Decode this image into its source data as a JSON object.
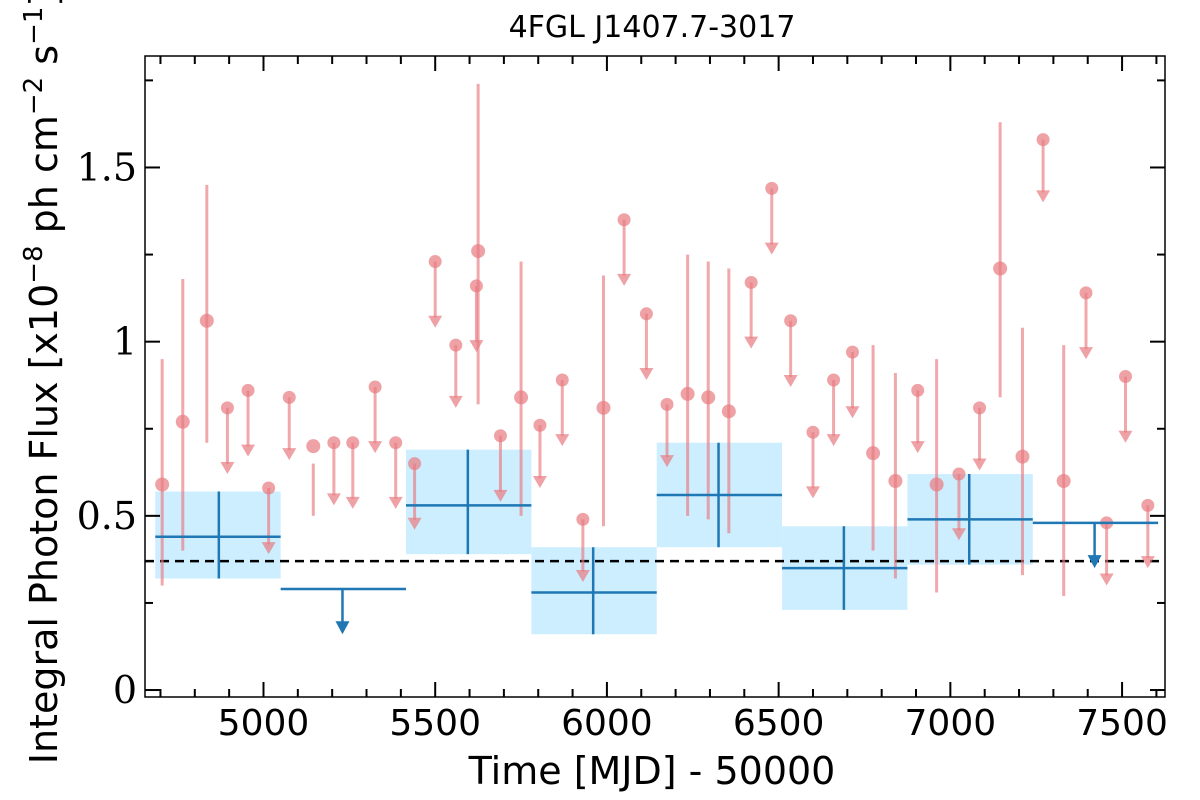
{
  "chart_data": {
    "type": "scatter",
    "title": "4FGL J1407.7-3017",
    "xlabel": "Time [MJD] - 50000",
    "ylabel_parts": [
      "Integral Photon Flux [x10",
      "−8",
      " ph cm",
      "−2",
      " s",
      "−1",
      "]"
    ],
    "xlim": [
      4655,
      7625
    ],
    "ylim": [
      -0.02,
      1.82
    ],
    "xticks": [
      5000,
      5500,
      6000,
      6500,
      7000,
      7500
    ],
    "xtick_labels": [
      "5000",
      "5500",
      "6000",
      "6500",
      "7000",
      "7500"
    ],
    "yticks": [
      0,
      0.5,
      1,
      1.5
    ],
    "ytick_labels": [
      "0",
      "0.5",
      "1",
      "1.5"
    ],
    "ref_level": 0.37,
    "colors": {
      "fine": "#e87a80",
      "coarse": "#1f77b4",
      "band": "#cdeeff",
      "ref": "#000000"
    },
    "series": [
      {
        "points": [
          {
            "x": 4705,
            "y": 0.59,
            "lo": 0.3,
            "hi": 0.95
          },
          {
            "x": 4765,
            "y": 0.77,
            "lo": 0.4,
            "hi": 1.18
          },
          {
            "x": 4835,
            "y": 1.06,
            "lo": 0.71,
            "hi": 1.45
          },
          {
            "x": 5145,
            "y": 0.7,
            "lo": 0.5,
            "hi": 0.65
          },
          {
            "x": 5625,
            "y": 1.26,
            "lo": 0.82,
            "hi": 1.74
          },
          {
            "x": 5750,
            "y": 0.84,
            "lo": 0.5,
            "hi": 1.23
          },
          {
            "x": 5990,
            "y": 0.81,
            "lo": 0.47,
            "hi": 1.19
          },
          {
            "x": 6235,
            "y": 0.85,
            "lo": 0.5,
            "hi": 1.25
          },
          {
            "x": 6295,
            "y": 0.84,
            "lo": 0.49,
            "hi": 1.23
          },
          {
            "x": 6355,
            "y": 0.8,
            "lo": 0.45,
            "hi": 1.21
          },
          {
            "x": 6775,
            "y": 0.68,
            "lo": 0.4,
            "hi": 0.99
          },
          {
            "x": 6840,
            "y": 0.6,
            "lo": 0.32,
            "hi": 0.91
          },
          {
            "x": 6960,
            "y": 0.59,
            "lo": 0.28,
            "hi": 0.95
          },
          {
            "x": 7145,
            "y": 1.21,
            "lo": 0.84,
            "hi": 1.63
          },
          {
            "x": 7210,
            "y": 0.67,
            "lo": 0.33,
            "hi": 1.04
          },
          {
            "x": 7330,
            "y": 0.6,
            "lo": 0.27,
            "hi": 0.99
          }
        ]
      },
      {
        "upper_limits": [
          {
            "x": 4895,
            "y": 0.81,
            "to": 0.62
          },
          {
            "x": 4955,
            "y": 0.86,
            "to": 0.67
          },
          {
            "x": 5015,
            "y": 0.58,
            "to": 0.39
          },
          {
            "x": 5075,
            "y": 0.84,
            "to": 0.66
          },
          {
            "x": 5205,
            "y": 0.71,
            "to": 0.53
          },
          {
            "x": 5260,
            "y": 0.71,
            "to": 0.52
          },
          {
            "x": 5325,
            "y": 0.87,
            "to": 0.68
          },
          {
            "x": 5385,
            "y": 0.71,
            "to": 0.52
          },
          {
            "x": 5440,
            "y": 0.65,
            "to": 0.46
          },
          {
            "x": 5500,
            "y": 1.23,
            "to": 1.04
          },
          {
            "x": 5560,
            "y": 0.99,
            "to": 0.81
          },
          {
            "x": 5620,
            "y": 1.16,
            "to": 0.97
          },
          {
            "x": 5690,
            "y": 0.73,
            "to": 0.54
          },
          {
            "x": 5805,
            "y": 0.76,
            "to": 0.58
          },
          {
            "x": 5870,
            "y": 0.89,
            "to": 0.7
          },
          {
            "x": 5930,
            "y": 0.49,
            "to": 0.31
          },
          {
            "x": 6050,
            "y": 1.35,
            "to": 1.16
          },
          {
            "x": 6115,
            "y": 1.08,
            "to": 0.89
          },
          {
            "x": 6175,
            "y": 0.82,
            "to": 0.64
          },
          {
            "x": 6420,
            "y": 1.17,
            "to": 0.98
          },
          {
            "x": 6480,
            "y": 1.44,
            "to": 1.25
          },
          {
            "x": 6535,
            "y": 1.06,
            "to": 0.87
          },
          {
            "x": 6600,
            "y": 0.74,
            "to": 0.55
          },
          {
            "x": 6660,
            "y": 0.89,
            "to": 0.7
          },
          {
            "x": 6715,
            "y": 0.97,
            "to": 0.78
          },
          {
            "x": 6905,
            "y": 0.86,
            "to": 0.68
          },
          {
            "x": 7025,
            "y": 0.62,
            "to": 0.43
          },
          {
            "x": 7085,
            "y": 0.81,
            "to": 0.63
          },
          {
            "x": 7270,
            "y": 1.58,
            "to": 1.4
          },
          {
            "x": 7395,
            "y": 1.14,
            "to": 0.95
          },
          {
            "x": 7455,
            "y": 0.48,
            "to": 0.3
          },
          {
            "x": 7510,
            "y": 0.9,
            "to": 0.71
          },
          {
            "x": 7575,
            "y": 0.53,
            "to": 0.35
          }
        ]
      },
      {
        "bins": [
          {
            "x0": 4685,
            "x1": 5050,
            "xc": 4870,
            "y": 0.44,
            "lo": 0.32,
            "hi": 0.57
          },
          {
            "x0": 5415,
            "x1": 5780,
            "xc": 5595,
            "y": 0.53,
            "lo": 0.39,
            "hi": 0.69
          },
          {
            "x0": 5780,
            "x1": 6145,
            "xc": 5960,
            "y": 0.28,
            "lo": 0.16,
            "hi": 0.41
          },
          {
            "x0": 6145,
            "x1": 6510,
            "xc": 6325,
            "y": 0.56,
            "lo": 0.41,
            "hi": 0.71
          },
          {
            "x0": 6510,
            "x1": 6875,
            "xc": 6690,
            "y": 0.35,
            "lo": 0.23,
            "hi": 0.47
          },
          {
            "x0": 6875,
            "x1": 7240,
            "xc": 7055,
            "y": 0.49,
            "lo": 0.36,
            "hi": 0.62
          }
        ]
      },
      {
        "upper_limits": [
          {
            "x0": 5050,
            "x1": 5415,
            "xc": 5230,
            "y": 0.29,
            "to": 0.16
          },
          {
            "x0": 7240,
            "x1": 7605,
            "xc": 7420,
            "y": 0.48,
            "to": 0.35
          }
        ]
      }
    ]
  }
}
